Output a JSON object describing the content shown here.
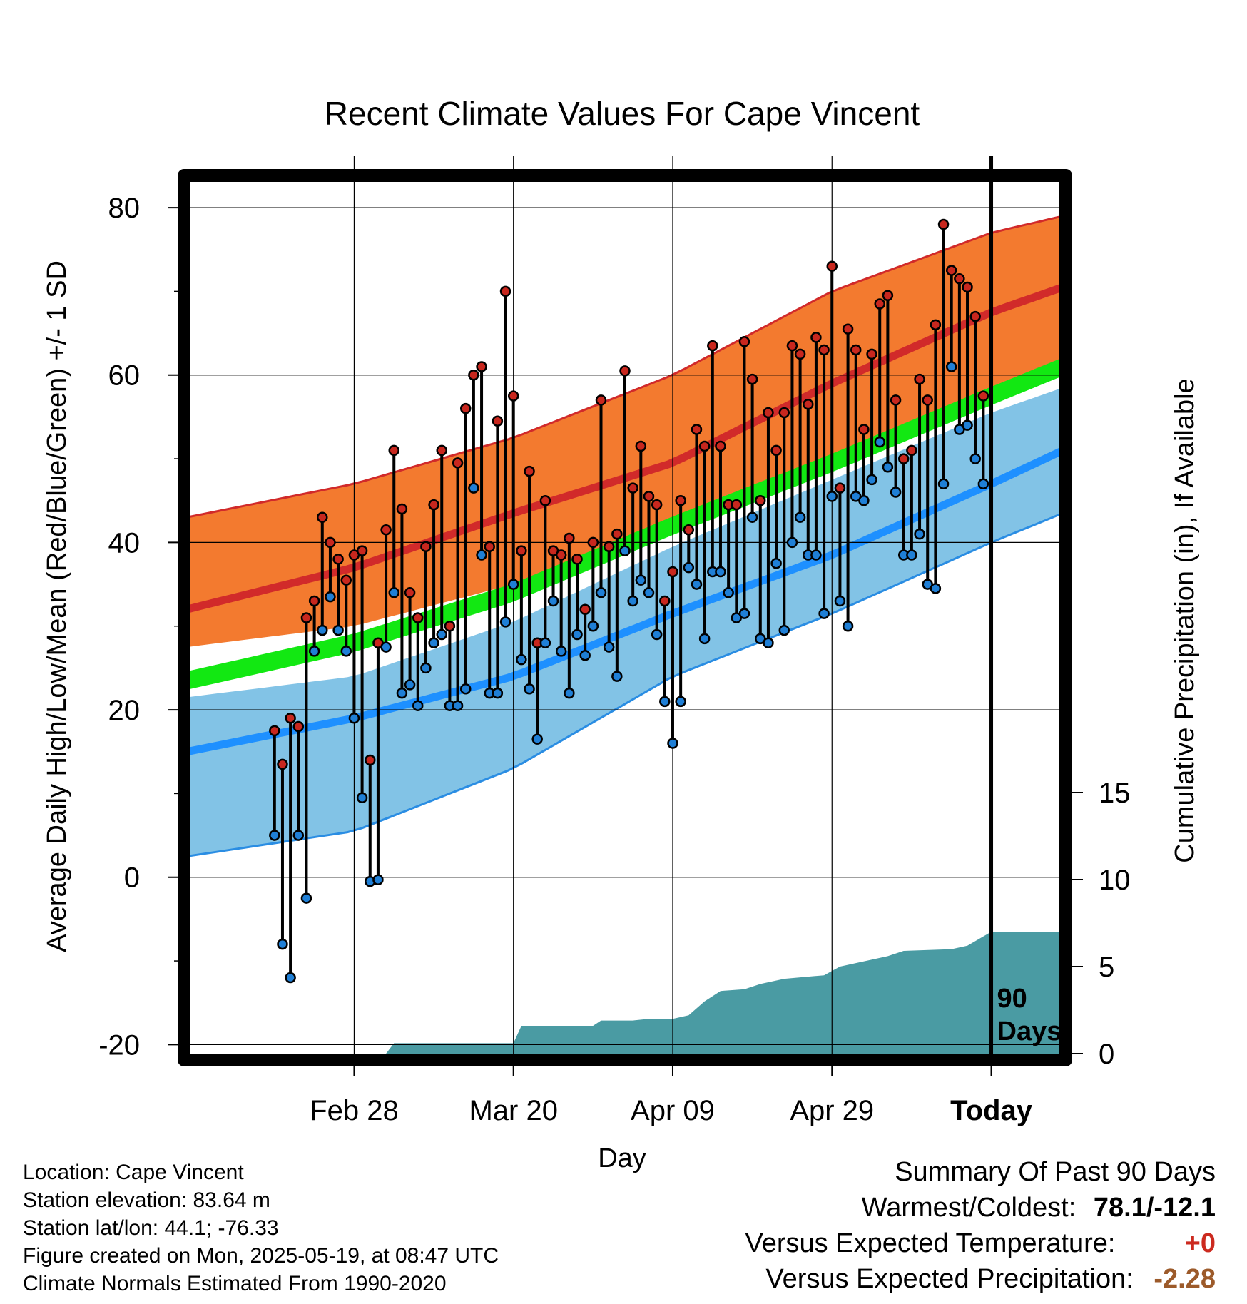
{
  "chart_data": {
    "type": "line",
    "title": "Recent Climate Values For Cape Vincent",
    "xlabel": "Day",
    "ylabel": "Average Daily High/Low/Mean (Red/Blue/Green) +/- 1 SD",
    "y2label": "Cumulative Precipitation (in), If Available",
    "ylim": [
      -21.5,
      83.5
    ],
    "y_ticks": [
      -20,
      0,
      20,
      40,
      60,
      80
    ],
    "y_tick_labels": [
      "-20",
      "0",
      "20",
      "40",
      "60",
      "80"
    ],
    "y2lim": [
      0,
      50
    ],
    "y2_ticks": [
      0,
      5,
      10,
      15
    ],
    "y2_tick_labels": [
      "0",
      "5",
      "10",
      "15"
    ],
    "xlim": [
      -101,
      9
    ],
    "x_ticks": [
      -80,
      -60,
      -40,
      -20,
      0
    ],
    "x_tick_labels": [
      "Feb 28",
      "Mar 20",
      "Apr 09",
      "Apr 29",
      "Today"
    ],
    "today_marker_label": [
      "90",
      "Days"
    ],
    "normals_x": [
      -101,
      -80,
      -60,
      -40,
      -20,
      0,
      9
    ],
    "normal_high": [
      32,
      37,
      43.5,
      49.5,
      59,
      67.5,
      70.5
    ],
    "normal_high_upper": [
      43,
      47,
      52.5,
      60,
      70,
      77,
      79
    ],
    "normal_high_lower": [
      27.5,
      30,
      35,
      41,
      49,
      57.5,
      61
    ],
    "normal_low": [
      15,
      19,
      24,
      31.5,
      38.5,
      47,
      51
    ],
    "normal_low_upper": [
      21.5,
      24,
      30.5,
      39.5,
      47.5,
      55.5,
      58.5
    ],
    "normal_low_lower": [
      2.5,
      5.5,
      13,
      24,
      31.5,
      40,
      43.5
    ],
    "normal_mean": [
      23.5,
      28,
      34,
      42,
      49.5,
      57.5,
      61
    ],
    "daily_x_start": -90,
    "daily_high": [
      17.5,
      13.5,
      19,
      18,
      31,
      33,
      43,
      40,
      38,
      35.5,
      38.5,
      39,
      14,
      28,
      41.5,
      51,
      44,
      34,
      31,
      39.5,
      44.5,
      51,
      30,
      49.5,
      56,
      60,
      61,
      39.5,
      54.5,
      70,
      57.5,
      39,
      48.5,
      28,
      45,
      39,
      38.5,
      40.5,
      38,
      32,
      40,
      57,
      39.5,
      41,
      60.5,
      46.5,
      51.5,
      45.5,
      44.5,
      33,
      36.5,
      45,
      41.5,
      53.5,
      51.5,
      63.5,
      51.5,
      44.5,
      44.5,
      64,
      59.5,
      45,
      55.5,
      51,
      55.5,
      63.5,
      62.5,
      56.5,
      64.5,
      63,
      73,
      46.5,
      65.5,
      63,
      53.5,
      62.5,
      68.5,
      69.5,
      57,
      50,
      51,
      59.5,
      57,
      66,
      78,
      72.5,
      71.5,
      70.5,
      67,
      57.5
    ],
    "daily_low": [
      5,
      -8,
      -12,
      5,
      -2.5,
      27,
      29.5,
      33.5,
      29.5,
      27,
      19,
      9.5,
      -0.5,
      -0.3,
      27.5,
      34,
      22,
      23,
      20.5,
      25,
      28,
      29,
      20.5,
      20.5,
      22.5,
      46.5,
      38.5,
      22,
      22,
      30.5,
      35,
      26,
      22.5,
      16.5,
      28,
      33,
      27,
      22,
      29,
      26.5,
      30,
      34,
      27.5,
      24,
      39,
      33,
      35.5,
      34,
      29,
      21,
      16,
      21,
      37,
      35,
      28.5,
      36.5,
      36.5,
      34,
      31,
      31.5,
      43,
      28.5,
      28,
      37.5,
      29.5,
      40,
      43,
      38.5,
      38.5,
      31.5,
      45.5,
      33,
      30,
      45.5,
      45,
      47.5,
      52,
      49,
      46,
      38.5,
      38.5,
      41,
      35,
      34.5,
      47,
      61,
      53.5,
      54,
      50,
      47
    ]
  },
  "precip": {
    "x": [
      -101,
      -76,
      -75,
      -60,
      -59,
      -50,
      -49,
      -45,
      -43,
      -40,
      -38,
      -36,
      -34,
      -31,
      -29,
      -26,
      -21,
      -19,
      -17,
      -15,
      -13,
      -11,
      -5,
      -3,
      0,
      9
    ],
    "cumulative": [
      0,
      0,
      0.6,
      0.6,
      1.6,
      1.6,
      1.9,
      1.9,
      2.0,
      2.0,
      2.2,
      3.0,
      3.6,
      3.7,
      4.0,
      4.3,
      4.5,
      5.0,
      5.2,
      5.4,
      5.6,
      5.9,
      6.0,
      6.2,
      7.0,
      7.0
    ]
  },
  "colors": {
    "high_band": "#f37a2f",
    "high_line": "#d12a2a",
    "low_band": "#82c3e6",
    "low_line": "#1e90ff",
    "low_band_edge": "#2a8de3",
    "mean_band": "#12e812",
    "overlap_band": "#8b1414",
    "precip_fill": "#4a9ba3",
    "high_marker": "#c8271e",
    "low_marker": "#1f7fd6"
  },
  "footer": {
    "location": "Location: Cape Vincent",
    "elevation": "Station elevation: 83.64 m",
    "latlon": "Station lat/lon: 44.1; -76.33",
    "created": "Figure created on Mon, 2025-05-19, at 08:47 UTC",
    "normals": "Climate Normals Estimated From 1990-2020"
  },
  "summary": {
    "heading": "Summary Of Past 90 Days",
    "warmest_label": "Warmest/Coldest:",
    "warmest_value": "78.1/-12.1",
    "temp_label": "Versus Expected Temperature:",
    "temp_value": "+0",
    "temp_color": "#cc2a1f",
    "precip_label": "Versus Expected Precipitation:",
    "precip_value": "-2.28",
    "precip_color": "#9c5a2a"
  }
}
